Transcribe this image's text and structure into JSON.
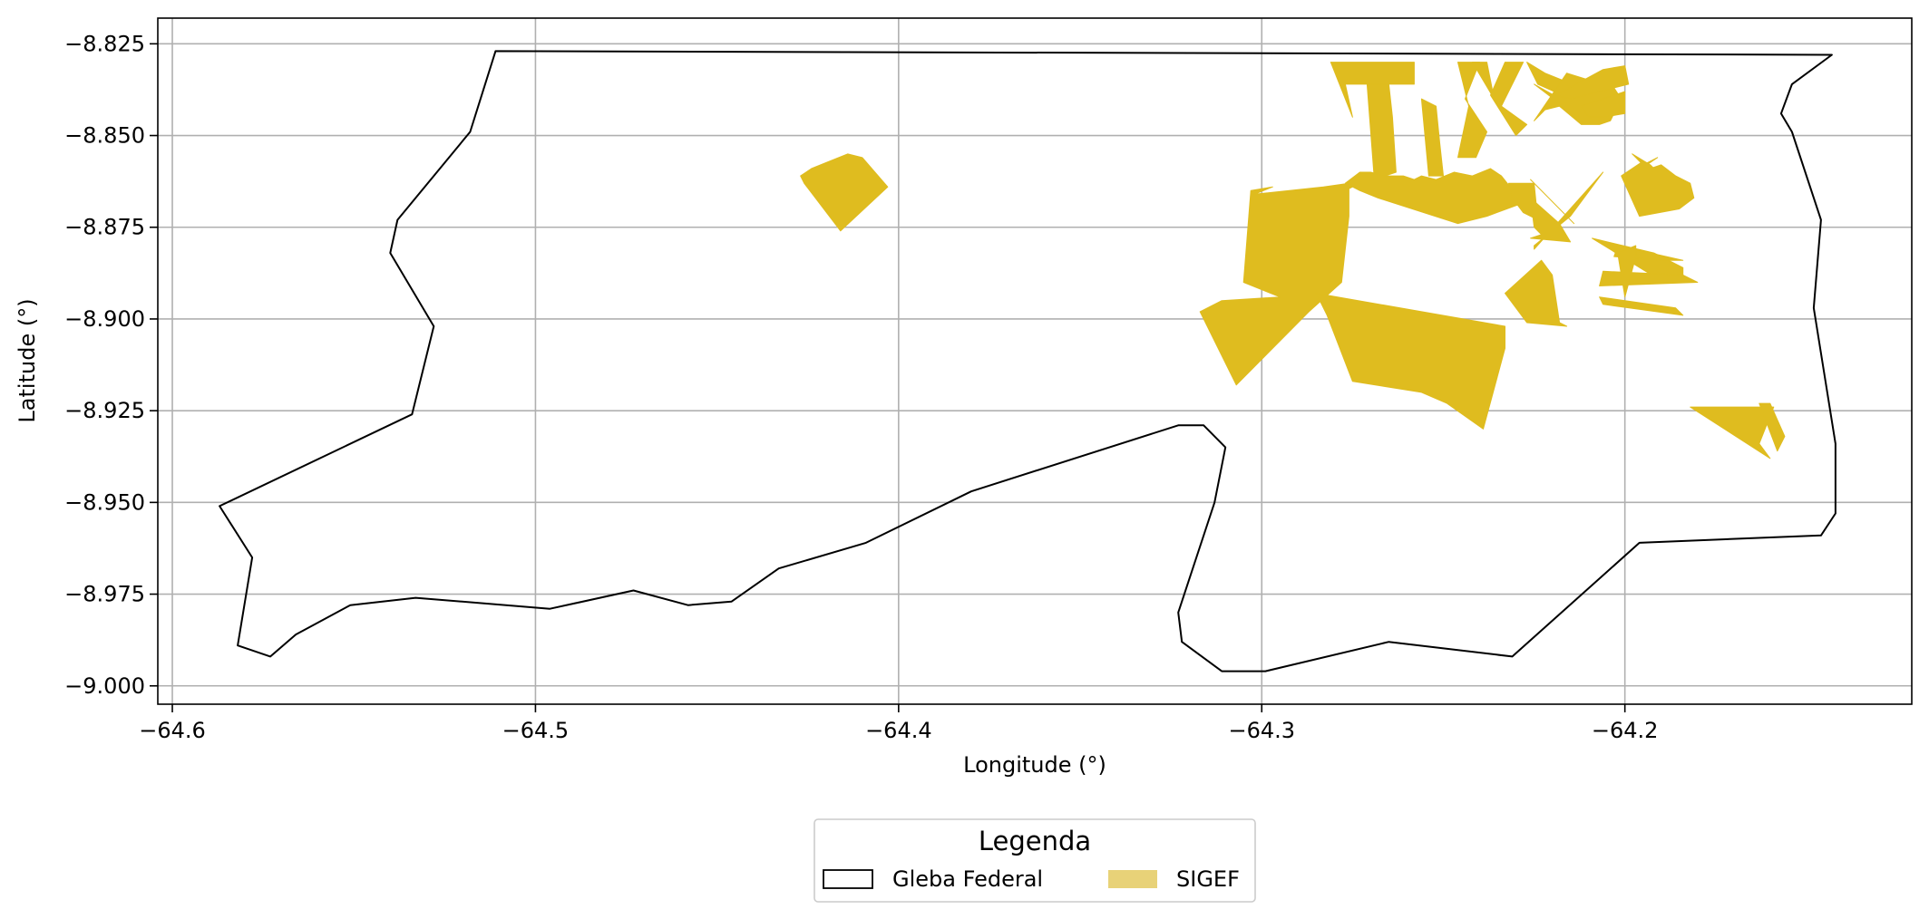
{
  "chart_data": {
    "type": "map",
    "xlabel": "Longitude (°)",
    "ylabel": "Latitude (°)",
    "xlim": [
      -64.604,
      -64.121
    ],
    "ylim": [
      -9.005,
      -8.818
    ],
    "xticks": [
      -64.6,
      -64.5,
      -64.4,
      -64.3,
      -64.2
    ],
    "xtick_labels": [
      "−64.6",
      "−64.5",
      "−64.4",
      "−64.3",
      "−64.2"
    ],
    "yticks": [
      -8.825,
      -8.85,
      -8.875,
      -8.9,
      -8.925,
      -8.95,
      -8.975,
      -9.0
    ],
    "ytick_labels": [
      "−8.825",
      "−8.850",
      "−8.875",
      "−8.900",
      "−8.925",
      "−8.950",
      "−8.975",
      "−9.000"
    ],
    "grid": true,
    "legend": {
      "title": "Legenda",
      "placement": "bottom-center",
      "entries": [
        {
          "label": "Gleba Federal",
          "style": "outline",
          "color": "#000000"
        },
        {
          "label": "SIGEF",
          "style": "fill",
          "color": "#e8d278"
        }
      ]
    },
    "gleba_federal": {
      "name": "Gleba Federal",
      "edge_color": "#000000",
      "coords": [
        [
          -64.511,
          -8.827
        ],
        [
          -64.143,
          -8.828
        ],
        [
          -64.154,
          -8.836
        ],
        [
          -64.157,
          -8.844
        ],
        [
          -64.154,
          -8.849
        ],
        [
          -64.146,
          -8.873
        ],
        [
          -64.148,
          -8.897
        ],
        [
          -64.142,
          -8.934
        ],
        [
          -64.142,
          -8.953
        ],
        [
          -64.146,
          -8.959
        ],
        [
          -64.171,
          -8.96
        ],
        [
          -64.196,
          -8.961
        ],
        [
          -64.231,
          -8.992
        ],
        [
          -64.265,
          -8.988
        ],
        [
          -64.299,
          -8.996
        ],
        [
          -64.311,
          -8.996
        ],
        [
          -64.322,
          -8.988
        ],
        [
          -64.323,
          -8.98
        ],
        [
          -64.313,
          -8.95
        ],
        [
          -64.31,
          -8.935
        ],
        [
          -64.316,
          -8.929
        ],
        [
          -64.323,
          -8.929
        ],
        [
          -64.38,
          -8.947
        ],
        [
          -64.409,
          -8.961
        ],
        [
          -64.433,
          -8.968
        ],
        [
          -64.446,
          -8.977
        ],
        [
          -64.458,
          -8.978
        ],
        [
          -64.473,
          -8.974
        ],
        [
          -64.496,
          -8.979
        ],
        [
          -64.533,
          -8.976
        ],
        [
          -64.551,
          -8.978
        ],
        [
          -64.566,
          -8.986
        ],
        [
          -64.573,
          -8.992
        ],
        [
          -64.582,
          -8.989
        ],
        [
          -64.578,
          -8.965
        ],
        [
          -64.587,
          -8.951
        ],
        [
          -64.534,
          -8.926
        ],
        [
          -64.528,
          -8.902
        ],
        [
          -64.54,
          -8.882
        ],
        [
          -64.538,
          -8.873
        ],
        [
          -64.518,
          -8.849
        ]
      ]
    },
    "sigef": {
      "name": "SIGEF",
      "fill_color": "#dfbc1f",
      "parcels": [
        [
          [
            -64.41,
            -8.856
          ],
          [
            -64.414,
            -8.855
          ],
          [
            -64.419,
            -8.857
          ],
          [
            -64.424,
            -8.859
          ],
          [
            -64.427,
            -8.861
          ],
          [
            -64.427,
            -8.861
          ],
          [
            -64.426,
            -8.863
          ],
          [
            -64.416,
            -8.876
          ],
          [
            -64.403,
            -8.864
          ]
        ],
        [
          [
            -64.281,
            -8.83
          ],
          [
            -64.258,
            -8.83
          ],
          [
            -64.258,
            -8.836
          ],
          [
            -64.277,
            -8.836
          ],
          [
            -64.275,
            -8.845
          ]
        ],
        [
          [
            -64.271,
            -8.836
          ],
          [
            -64.265,
            -8.836
          ],
          [
            -64.264,
            -8.845
          ],
          [
            -64.263,
            -8.86
          ],
          [
            -64.269,
            -8.862
          ]
        ],
        [
          [
            -64.256,
            -8.84
          ],
          [
            -64.252,
            -8.842
          ],
          [
            -64.251,
            -8.852
          ],
          [
            -64.25,
            -8.861
          ],
          [
            -64.254,
            -8.861
          ]
        ],
        [
          [
            -64.246,
            -8.83
          ],
          [
            -64.24,
            -8.83
          ],
          [
            -64.244,
            -8.84
          ],
          [
            -64.238,
            -8.849
          ],
          [
            -64.241,
            -8.856
          ],
          [
            -64.246,
            -8.856
          ],
          [
            -64.243,
            -8.842
          ]
        ],
        [
          [
            -64.236,
            -8.84
          ],
          [
            -64.238,
            -8.83
          ],
          [
            -64.242,
            -8.83
          ]
        ],
        [
          [
            -64.237,
            -8.839
          ],
          [
            -64.233,
            -8.83
          ],
          [
            -64.228,
            -8.83
          ],
          [
            -64.234,
            -8.842
          ],
          [
            -64.227,
            -8.847
          ],
          [
            -64.23,
            -8.85
          ]
        ],
        [
          [
            -64.227,
            -8.83
          ],
          [
            -64.222,
            -8.833
          ],
          [
            -64.212,
            -8.837
          ],
          [
            -64.215,
            -8.84
          ],
          [
            -64.224,
            -8.836
          ]
        ],
        [
          [
            -64.225,
            -8.836
          ],
          [
            -64.217,
            -8.842
          ],
          [
            -64.216,
            -8.841
          ]
        ],
        [
          [
            -64.216,
            -8.833
          ],
          [
            -64.203,
            -8.837
          ],
          [
            -64.201,
            -8.84
          ],
          [
            -64.204,
            -8.846
          ],
          [
            -64.207,
            -8.847
          ],
          [
            -64.212,
            -8.847
          ],
          [
            -64.218,
            -8.842
          ],
          [
            -64.222,
            -8.843
          ],
          [
            -64.225,
            -8.846
          ]
        ],
        [
          [
            -64.206,
            -8.832
          ],
          [
            -64.2,
            -8.831
          ],
          [
            -64.199,
            -8.836
          ],
          [
            -64.215,
            -8.84
          ],
          [
            -64.219,
            -8.839
          ]
        ],
        [
          [
            -64.2,
            -8.838
          ],
          [
            -64.2,
            -8.844
          ],
          [
            -64.206,
            -8.845
          ],
          [
            -64.21,
            -8.845
          ],
          [
            -64.212,
            -8.842
          ]
        ],
        [
          [
            -64.277,
            -8.863
          ],
          [
            -64.273,
            -8.86
          ],
          [
            -64.27,
            -8.86
          ],
          [
            -64.266,
            -8.861
          ],
          [
            -64.261,
            -8.861
          ],
          [
            -64.258,
            -8.862
          ],
          [
            -64.256,
            -8.861
          ],
          [
            -64.252,
            -8.862
          ],
          [
            -64.247,
            -8.86
          ],
          [
            -64.242,
            -8.861
          ],
          [
            -64.237,
            -8.859
          ],
          [
            -64.234,
            -8.861
          ],
          [
            -64.23,
            -8.866
          ],
          [
            -64.227,
            -8.867
          ],
          [
            -64.227,
            -8.868
          ],
          [
            -64.238,
            -8.872
          ],
          [
            -64.246,
            -8.874
          ],
          [
            -64.268,
            -8.867
          ],
          [
            -64.273,
            -8.865
          ],
          [
            -64.275,
            -8.864
          ],
          [
            -64.277,
            -8.865
          ]
        ],
        [
          [
            -64.232,
            -8.863
          ],
          [
            -64.231,
            -8.867
          ],
          [
            -64.228,
            -8.871
          ],
          [
            -64.224,
            -8.873
          ],
          [
            -64.225,
            -8.863
          ]
        ],
        [
          [
            -64.226,
            -8.862
          ],
          [
            -64.215,
            -8.873
          ],
          [
            -64.214,
            -8.874
          ],
          [
            -64.225,
            -8.863
          ]
        ],
        [
          [
            -64.194,
            -8.858
          ],
          [
            -64.192,
            -8.861
          ],
          [
            -64.195,
            -8.858
          ],
          [
            -64.191,
            -8.856
          ]
        ],
        [
          [
            -64.206,
            -8.86
          ],
          [
            -64.215,
            -8.872
          ],
          [
            -64.225,
            -8.88
          ],
          [
            -64.225,
            -8.881
          ]
        ],
        [
          [
            -64.198,
            -8.855
          ],
          [
            -64.193,
            -8.858
          ],
          [
            -64.189,
            -8.862
          ],
          [
            -64.194,
            -8.859
          ],
          [
            -64.198,
            -8.855
          ]
        ],
        [
          [
            -64.193,
            -8.859
          ],
          [
            -64.19,
            -8.858
          ],
          [
            -64.186,
            -8.861
          ],
          [
            -64.182,
            -8.863
          ],
          [
            -64.181,
            -8.867
          ],
          [
            -64.185,
            -8.87
          ],
          [
            -64.196,
            -8.872
          ],
          [
            -64.201,
            -8.861
          ],
          [
            -64.195,
            -8.857
          ]
        ],
        [
          [
            -64.223,
            -8.884
          ],
          [
            -64.22,
            -8.888
          ],
          [
            -64.218,
            -8.901
          ],
          [
            -64.216,
            -8.902
          ],
          [
            -64.227,
            -8.901
          ],
          [
            -64.233,
            -8.893
          ]
        ],
        [
          [
            -64.226,
            -8.867
          ],
          [
            -64.225,
            -8.875
          ],
          [
            -64.223,
            -8.877
          ],
          [
            -64.226,
            -8.878
          ],
          [
            -64.215,
            -8.879
          ],
          [
            -64.218,
            -8.874
          ]
        ],
        [
          [
            -64.209,
            -8.878
          ],
          [
            -64.192,
            -8.882
          ],
          [
            -64.184,
            -8.886
          ],
          [
            -64.184,
            -8.889
          ],
          [
            -64.191,
            -8.889
          ]
        ],
        [
          [
            -64.184,
            -8.884
          ],
          [
            -64.202,
            -8.88
          ],
          [
            -64.203,
            -8.883
          ],
          [
            -64.189,
            -8.884
          ]
        ],
        [
          [
            -64.206,
            -8.887
          ],
          [
            -64.184,
            -8.888
          ],
          [
            -64.18,
            -8.89
          ],
          [
            -64.207,
            -8.891
          ]
        ],
        [
          [
            -64.207,
            -8.894
          ],
          [
            -64.186,
            -8.897
          ],
          [
            -64.184,
            -8.899
          ],
          [
            -64.206,
            -8.896
          ]
        ],
        [
          [
            -64.276,
            -8.863
          ],
          [
            -64.283,
            -8.864
          ],
          [
            -64.302,
            -8.866
          ],
          [
            -64.297,
            -8.864
          ],
          [
            -64.303,
            -8.865
          ],
          [
            -64.305,
            -8.89
          ],
          [
            -64.295,
            -8.894
          ],
          [
            -64.311,
            -8.895
          ],
          [
            -64.317,
            -8.898
          ],
          [
            -64.307,
            -8.918
          ],
          [
            -64.287,
            -8.898
          ],
          [
            -64.278,
            -8.89
          ],
          [
            -64.276,
            -8.872
          ]
        ],
        [
          [
            -64.285,
            -8.893
          ],
          [
            -64.233,
            -8.902
          ],
          [
            -64.233,
            -8.908
          ],
          [
            -64.239,
            -8.93
          ],
          [
            -64.249,
            -8.923
          ],
          [
            -64.256,
            -8.92
          ],
          [
            -64.275,
            -8.917
          ],
          [
            -64.282,
            -8.899
          ]
        ],
        [
          [
            -64.197,
            -8.88
          ],
          [
            -64.202,
            -8.882
          ],
          [
            -64.2,
            -8.894
          ],
          [
            -64.197,
            -8.883
          ]
        ],
        [
          [
            -64.182,
            -8.924
          ],
          [
            -64.159,
            -8.924
          ],
          [
            -64.163,
            -8.934
          ],
          [
            -64.16,
            -8.938
          ]
        ],
        [
          [
            -64.163,
            -8.923
          ],
          [
            -64.16,
            -8.923
          ],
          [
            -64.156,
            -8.932
          ],
          [
            -64.158,
            -8.936
          ]
        ]
      ]
    }
  }
}
